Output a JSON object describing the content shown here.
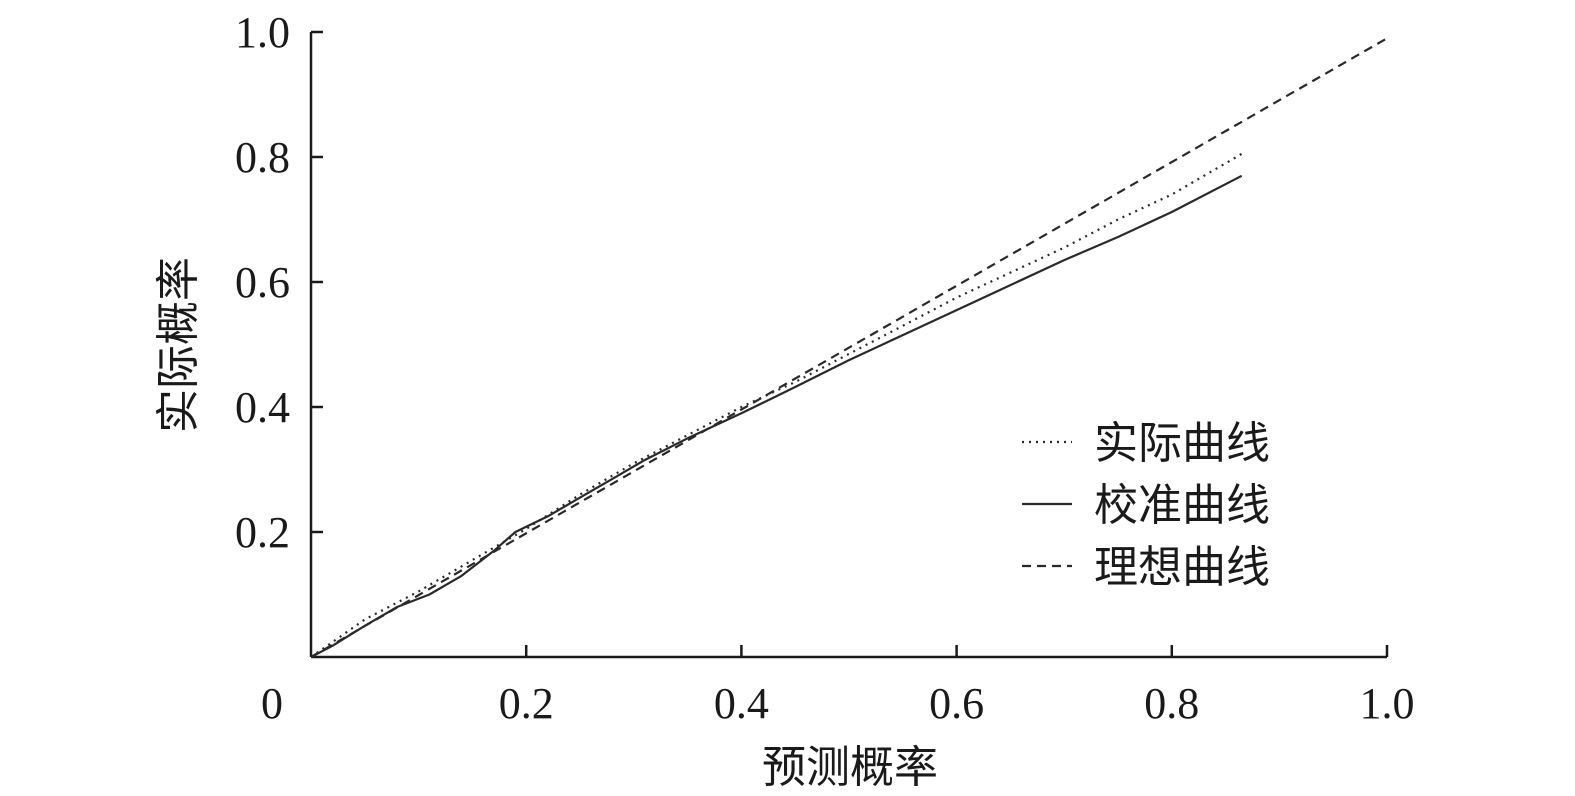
{
  "chart_data": {
    "type": "line",
    "title": "",
    "xlabel": "预测概率",
    "ylabel": "实际概率",
    "xlim": [
      0,
      1.0
    ],
    "ylim": [
      0,
      1.0
    ],
    "x_ticks": [
      0.2,
      0.4,
      0.6,
      0.8,
      1.0
    ],
    "x_tick_labels": [
      "0.2",
      "0.4",
      "0.6",
      "0.8",
      "1.0"
    ],
    "y_ticks": [
      0.2,
      0.4,
      0.6,
      0.8,
      1.0
    ],
    "y_tick_labels": [
      "0.2",
      "0.4",
      "0.6",
      "0.8",
      "1.0"
    ],
    "origin_label": "0",
    "grid": false,
    "legend_position": "right",
    "series": [
      {
        "name": "实际曲线",
        "style": "dotted",
        "x": [
          0.0,
          0.05,
          0.1,
          0.15,
          0.2,
          0.25,
          0.3,
          0.35,
          0.4,
          0.45,
          0.5,
          0.55,
          0.6,
          0.65,
          0.7,
          0.75,
          0.8,
          0.865
        ],
        "y": [
          0.0,
          0.06,
          0.105,
          0.155,
          0.205,
          0.26,
          0.31,
          0.355,
          0.4,
          0.44,
          0.485,
          0.53,
          0.575,
          0.615,
          0.655,
          0.7,
          0.74,
          0.805
        ]
      },
      {
        "name": "校准曲线",
        "style": "solid",
        "x": [
          0.0,
          0.02,
          0.05,
          0.08,
          0.11,
          0.14,
          0.17,
          0.19,
          0.22,
          0.25,
          0.28,
          0.31,
          0.35,
          0.4,
          0.45,
          0.5,
          0.55,
          0.6,
          0.65,
          0.7,
          0.75,
          0.8,
          0.865
        ],
        "y": [
          0.0,
          0.018,
          0.05,
          0.08,
          0.1,
          0.13,
          0.17,
          0.2,
          0.225,
          0.255,
          0.285,
          0.315,
          0.35,
          0.39,
          0.432,
          0.475,
          0.515,
          0.555,
          0.595,
          0.635,
          0.672,
          0.712,
          0.77
        ]
      },
      {
        "name": "理想曲线",
        "style": "dashed",
        "x": [
          0.0,
          1.0
        ],
        "y": [
          0.0,
          0.99
        ]
      }
    ]
  }
}
